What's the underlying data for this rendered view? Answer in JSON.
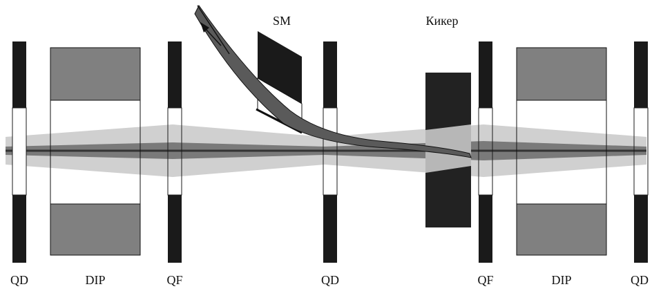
{
  "labels": {
    "qd_left": "QD",
    "dip_left": "DIP",
    "qf_left": "QF",
    "qd_center": "QD",
    "qf_right": "QF",
    "dip_right": "DIP",
    "qd_right": "QD",
    "septum": "SM",
    "kicker": "Кикер"
  },
  "colors": {
    "magnet_pole": "#1a1a1a",
    "dipole_fill": "#808080",
    "beam_envelope": "#d0d0d0",
    "beam_core": "#555555",
    "kicker": "#222222"
  }
}
